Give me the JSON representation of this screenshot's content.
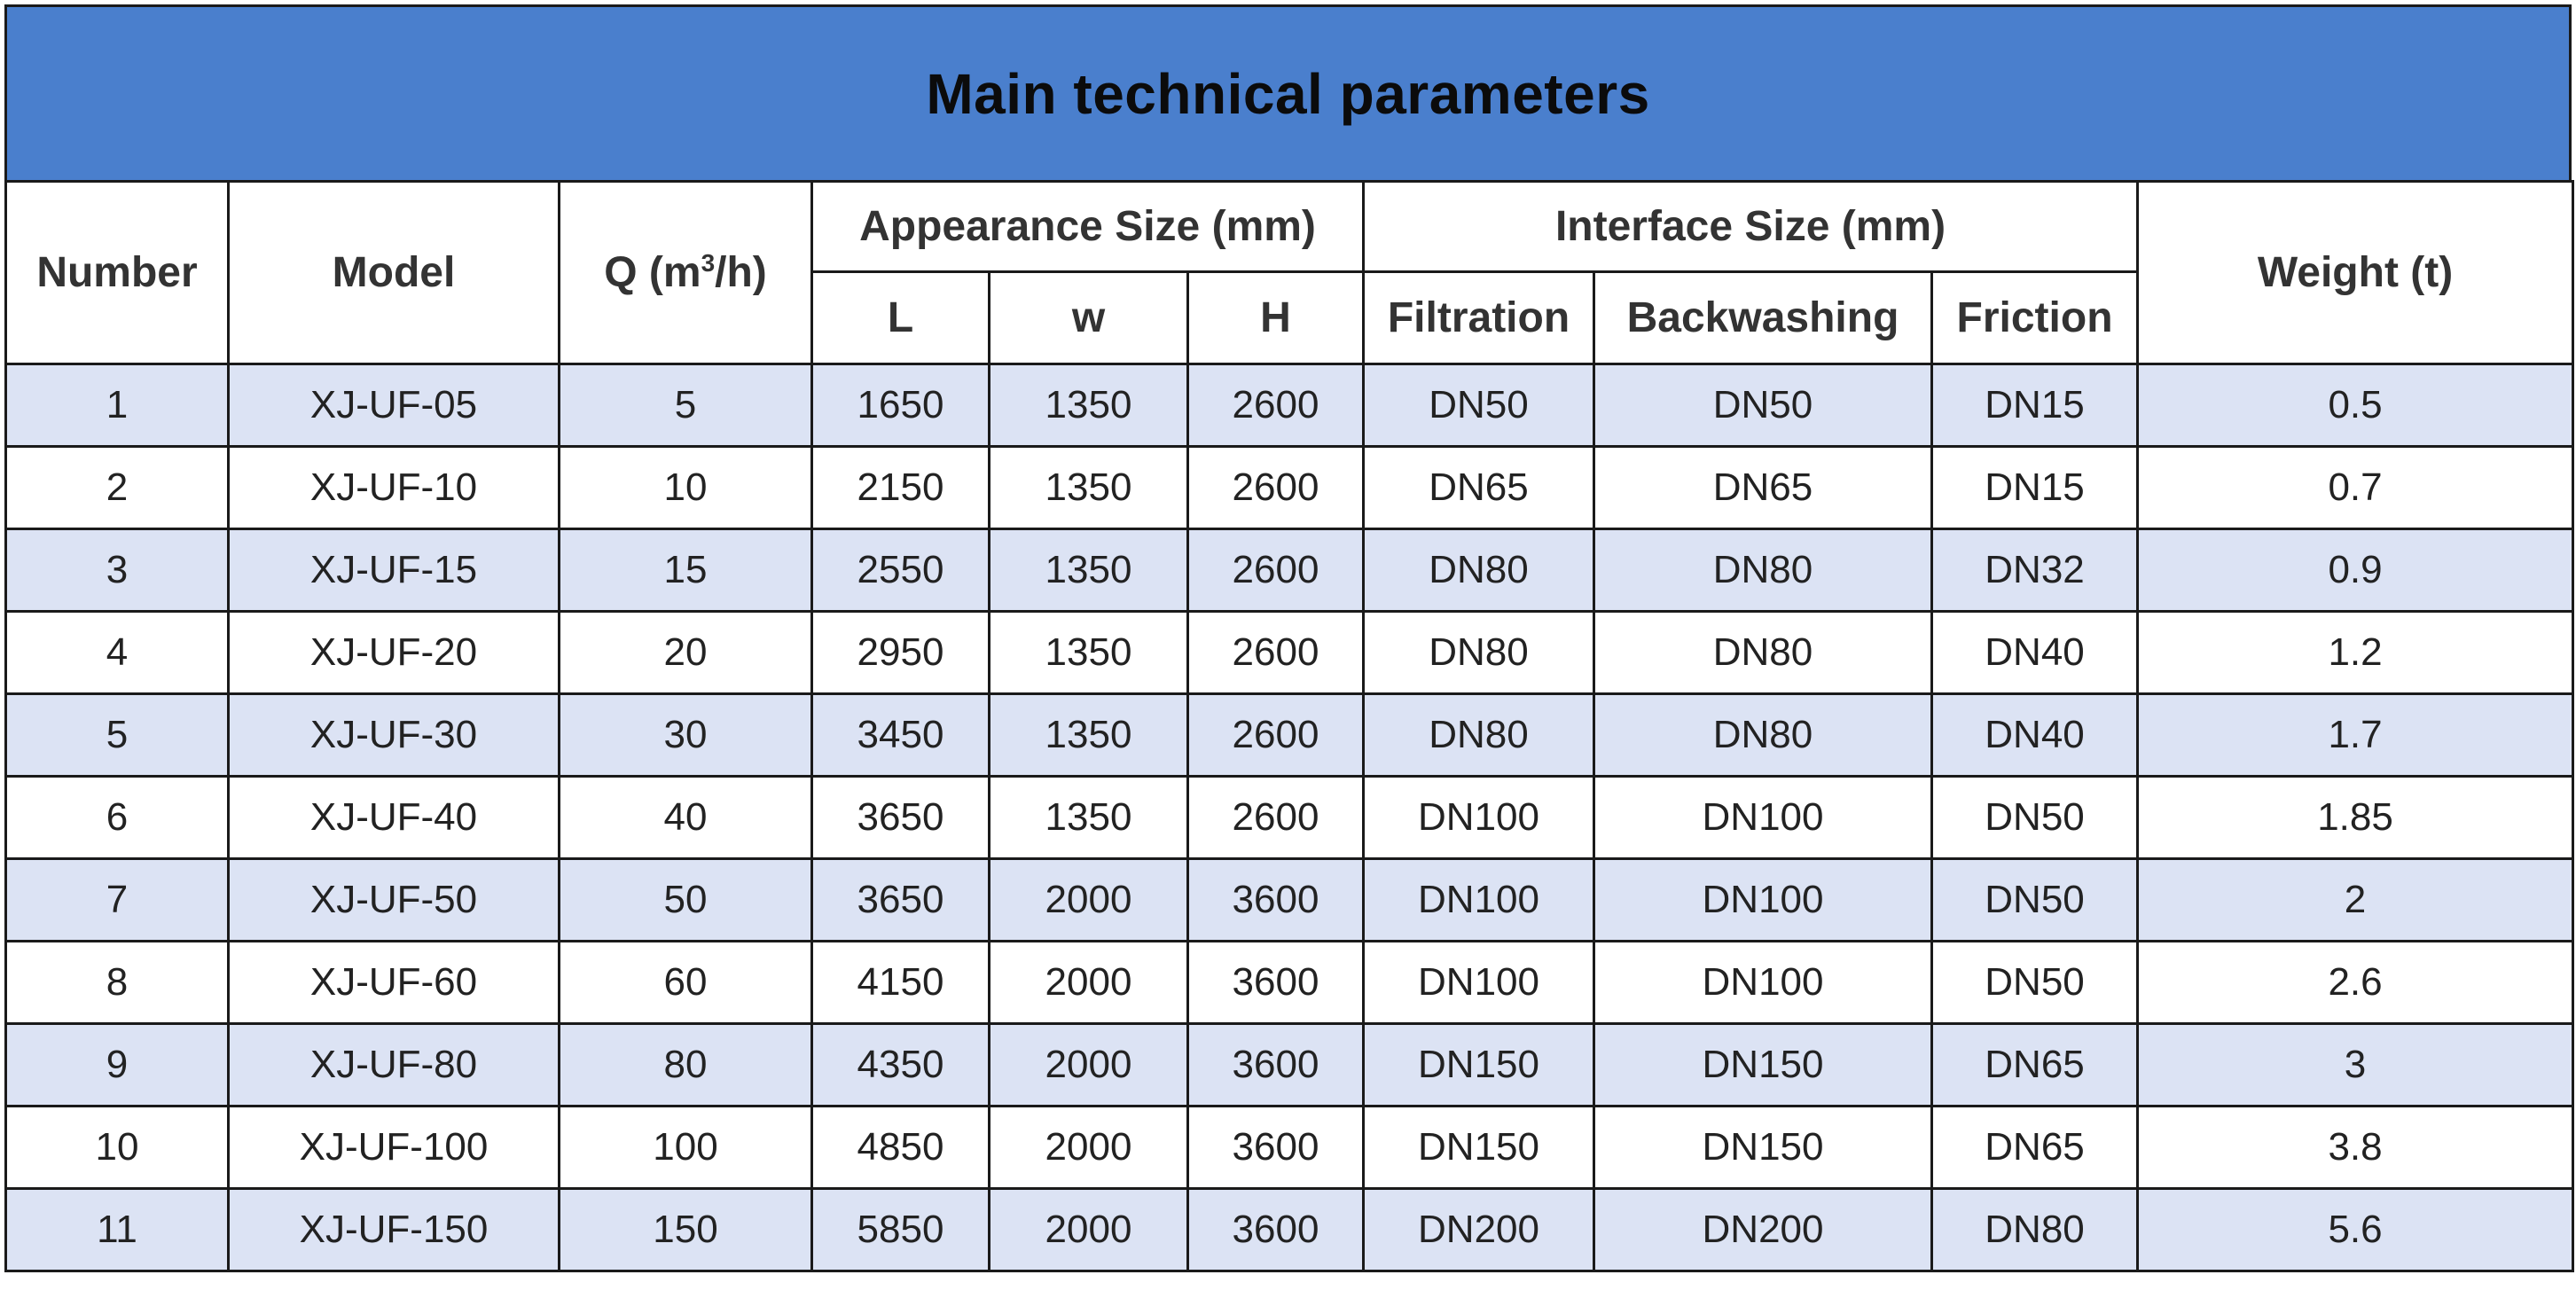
{
  "title": "Main technical parameters",
  "headers": {
    "number": "Number",
    "model": "Model",
    "q_prefix": "Q (m",
    "q_sup": "3",
    "q_suffix": "/h)",
    "appearance_group": "Appearance Size (mm)",
    "interface_group": "Interface Size (mm)",
    "weight": "Weight (t)",
    "l": "L",
    "w": "w",
    "h": "H",
    "filtration": "Filtration",
    "backwashing": "Backwashing",
    "friction": "Friction"
  },
  "rows": [
    {
      "number": "1",
      "model": "XJ-UF-05",
      "q": "5",
      "l": "1650",
      "w": "1350",
      "h": "2600",
      "filtration": "DN50",
      "backwashing": "DN50",
      "friction": "DN15",
      "weight": "0.5"
    },
    {
      "number": "2",
      "model": "XJ-UF-10",
      "q": "10",
      "l": "2150",
      "w": "1350",
      "h": "2600",
      "filtration": "DN65",
      "backwashing": "DN65",
      "friction": "DN15",
      "weight": "0.7"
    },
    {
      "number": "3",
      "model": "XJ-UF-15",
      "q": "15",
      "l": "2550",
      "w": "1350",
      "h": "2600",
      "filtration": "DN80",
      "backwashing": "DN80",
      "friction": "DN32",
      "weight": "0.9"
    },
    {
      "number": "4",
      "model": "XJ-UF-20",
      "q": "20",
      "l": "2950",
      "w": "1350",
      "h": "2600",
      "filtration": "DN80",
      "backwashing": "DN80",
      "friction": "DN40",
      "weight": "1.2"
    },
    {
      "number": "5",
      "model": "XJ-UF-30",
      "q": "30",
      "l": "3450",
      "w": "1350",
      "h": "2600",
      "filtration": "DN80",
      "backwashing": "DN80",
      "friction": "DN40",
      "weight": "1.7"
    },
    {
      "number": "6",
      "model": "XJ-UF-40",
      "q": "40",
      "l": "3650",
      "w": "1350",
      "h": "2600",
      "filtration": "DN100",
      "backwashing": "DN100",
      "friction": "DN50",
      "weight": "1.85"
    },
    {
      "number": "7",
      "model": "XJ-UF-50",
      "q": "50",
      "l": "3650",
      "w": "2000",
      "h": "3600",
      "filtration": "DN100",
      "backwashing": "DN100",
      "friction": "DN50",
      "weight": "2"
    },
    {
      "number": "8",
      "model": "XJ-UF-60",
      "q": "60",
      "l": "4150",
      "w": "2000",
      "h": "3600",
      "filtration": "DN100",
      "backwashing": "DN100",
      "friction": "DN50",
      "weight": "2.6"
    },
    {
      "number": "9",
      "model": "XJ-UF-80",
      "q": "80",
      "l": "4350",
      "w": "2000",
      "h": "3600",
      "filtration": "DN150",
      "backwashing": "DN150",
      "friction": "DN65",
      "weight": "3"
    },
    {
      "number": "10",
      "model": "XJ-UF-100",
      "q": "100",
      "l": "4850",
      "w": "2000",
      "h": "3600",
      "filtration": "DN150",
      "backwashing": "DN150",
      "friction": "DN65",
      "weight": "3.8"
    },
    {
      "number": "11",
      "model": "XJ-UF-150",
      "q": "150",
      "l": "5850",
      "w": "2000",
      "h": "3600",
      "filtration": "DN200",
      "backwashing": "DN200",
      "friction": "DN80",
      "weight": "5.6"
    }
  ],
  "colors": {
    "title_background": "#4a7fcd",
    "odd_row": "#dce3f4",
    "even_row": "#ffffff",
    "border": "#1a1a1a"
  }
}
